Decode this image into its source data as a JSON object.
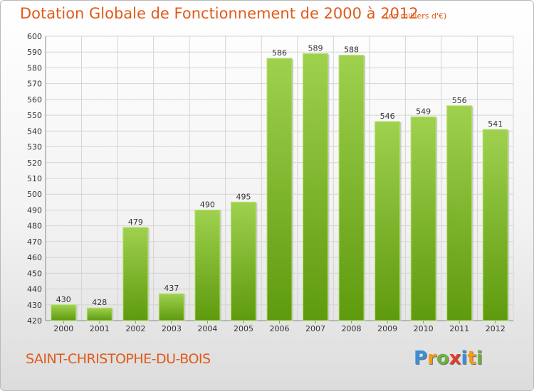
{
  "title": "Dotation Globale de Fonctionnement de 2000 à 2012",
  "subtitle": "(en milliers d'€)",
  "commune": "SAINT-CHRISTOPHE-DU-BOIS",
  "logo": {
    "letters": [
      "P",
      "r",
      "o",
      "x",
      "i",
      "t",
      "i"
    ],
    "colors": [
      "#3a8fd6",
      "#f29a1c",
      "#6cb33f",
      "#e63a2e",
      "#3a8fd6",
      "#f29a1c",
      "#6cb33f"
    ]
  },
  "colors": {
    "accent": "#e05a1a",
    "bar_top": "#9fd14f",
    "bar_bottom": "#5e9a0e"
  },
  "chart_data": {
    "type": "bar",
    "categories": [
      "2000",
      "2001",
      "2002",
      "2003",
      "2004",
      "2005",
      "2006",
      "2007",
      "2008",
      "2009",
      "2010",
      "2011",
      "2012"
    ],
    "values": [
      430,
      428,
      479,
      437,
      490,
      495,
      586,
      589,
      588,
      546,
      549,
      556,
      541
    ],
    "ylim": [
      420,
      600
    ],
    "ytick_step": 10,
    "grid": true,
    "legend": "none"
  }
}
